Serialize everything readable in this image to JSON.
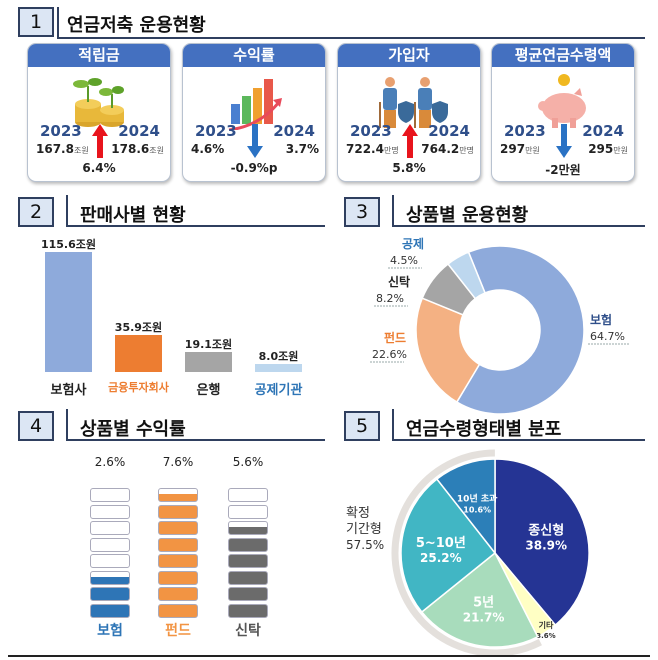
{
  "sections": [
    {
      "num": "1",
      "title": "연금저축  운용현황"
    },
    {
      "num": "2",
      "title": "판매사별  현황"
    },
    {
      "num": "3",
      "title": "상품별  운용현황"
    },
    {
      "num": "4",
      "title": "상품별  수익률"
    },
    {
      "num": "5",
      "title": "연금수령형태별  분포"
    }
  ],
  "cards": [
    {
      "title": "적립금",
      "icon": "coin-sprout-icon",
      "year_a": "2023",
      "year_b": "2024",
      "val_a": "167.8",
      "unit_a": "조원",
      "val_b": "178.6",
      "unit_b": "조원",
      "change": "6.4%",
      "direction": "up"
    },
    {
      "title": "수익률",
      "icon": "growth-bar-chart-icon",
      "year_a": "2023",
      "year_b": "2024",
      "val_a": "4.6%",
      "unit_a": "",
      "val_b": "3.7%",
      "unit_b": "",
      "change": "-0.9%p",
      "direction": "down"
    },
    {
      "title": "가입자",
      "icon": "elderly-shield-icon",
      "year_a": "2023",
      "year_b": "2024",
      "val_a": "722.4",
      "unit_a": "만명",
      "val_b": "764.2",
      "unit_b": "만명",
      "change": "5.8%",
      "direction": "up"
    },
    {
      "title": "평균연금수령액",
      "icon": "piggy-bank-icon",
      "year_a": "2023",
      "year_b": "2024",
      "val_a": "297",
      "unit_a": "만원",
      "val_b": "295",
      "unit_b": "만원",
      "change": "-2만원",
      "direction": "down"
    }
  ],
  "colors": {
    "up": "#e8141c",
    "down": "#2a72c4",
    "header": "#4470c0"
  },
  "chart_data": [
    {
      "type": "bar",
      "categories": [
        "보험사",
        "금융투자회사",
        "은행",
        "공제기관"
      ],
      "values": [
        115.6,
        35.9,
        19.1,
        8.0
      ],
      "data_labels": [
        "115.6조원",
        "35.9조원",
        "19.1조원",
        "8.0조원"
      ],
      "colors": [
        "#8eaadb",
        "#ed7d31",
        "#a5a5a5",
        "#bdd7ee"
      ],
      "label_colors": [
        "#222",
        "#ed7d31",
        "#222",
        "#2e75b6"
      ]
    },
    {
      "type": "pie",
      "variant": "donut",
      "categories": [
        "보험",
        "펀드",
        "신탁",
        "공제"
      ],
      "values": [
        64.7,
        22.6,
        8.2,
        4.5
      ],
      "data_labels": [
        "64.7%",
        "22.6%",
        "8.2%",
        "4.5%"
      ],
      "colors": [
        "#8eaadb",
        "#f4b183",
        "#a5a5a5",
        "#bdd7ee"
      ],
      "label_colors": [
        "#2f4f8a",
        "#ed7d31",
        "#222",
        "#2e75b6"
      ]
    },
    {
      "type": "bar",
      "variant": "stacked-blocks",
      "categories": [
        "보험",
        "펀드",
        "신탁"
      ],
      "values": [
        2.6,
        7.6,
        5.6
      ],
      "data_labels": [
        "2.6%",
        "7.6%",
        "5.6%"
      ],
      "max": 8,
      "colors": [
        "#2e75b6",
        "#f29443",
        "#6b6b6b"
      ]
    },
    {
      "type": "pie",
      "categories": [
        "종신형",
        "기타",
        "5년",
        "5~10년",
        "10년 초과"
      ],
      "values": [
        38.9,
        3.6,
        21.7,
        25.2,
        10.6
      ],
      "data_labels": [
        "38.9%",
        "3.6%",
        "21.7%",
        "25.2%",
        "10.6%"
      ],
      "colors": [
        "#253494",
        "#ffffc4",
        "#a8dcbc",
        "#41b6c4",
        "#2c7fb8"
      ],
      "group": {
        "label": "확정\n기간형",
        "value": "57.5%"
      }
    }
  ]
}
